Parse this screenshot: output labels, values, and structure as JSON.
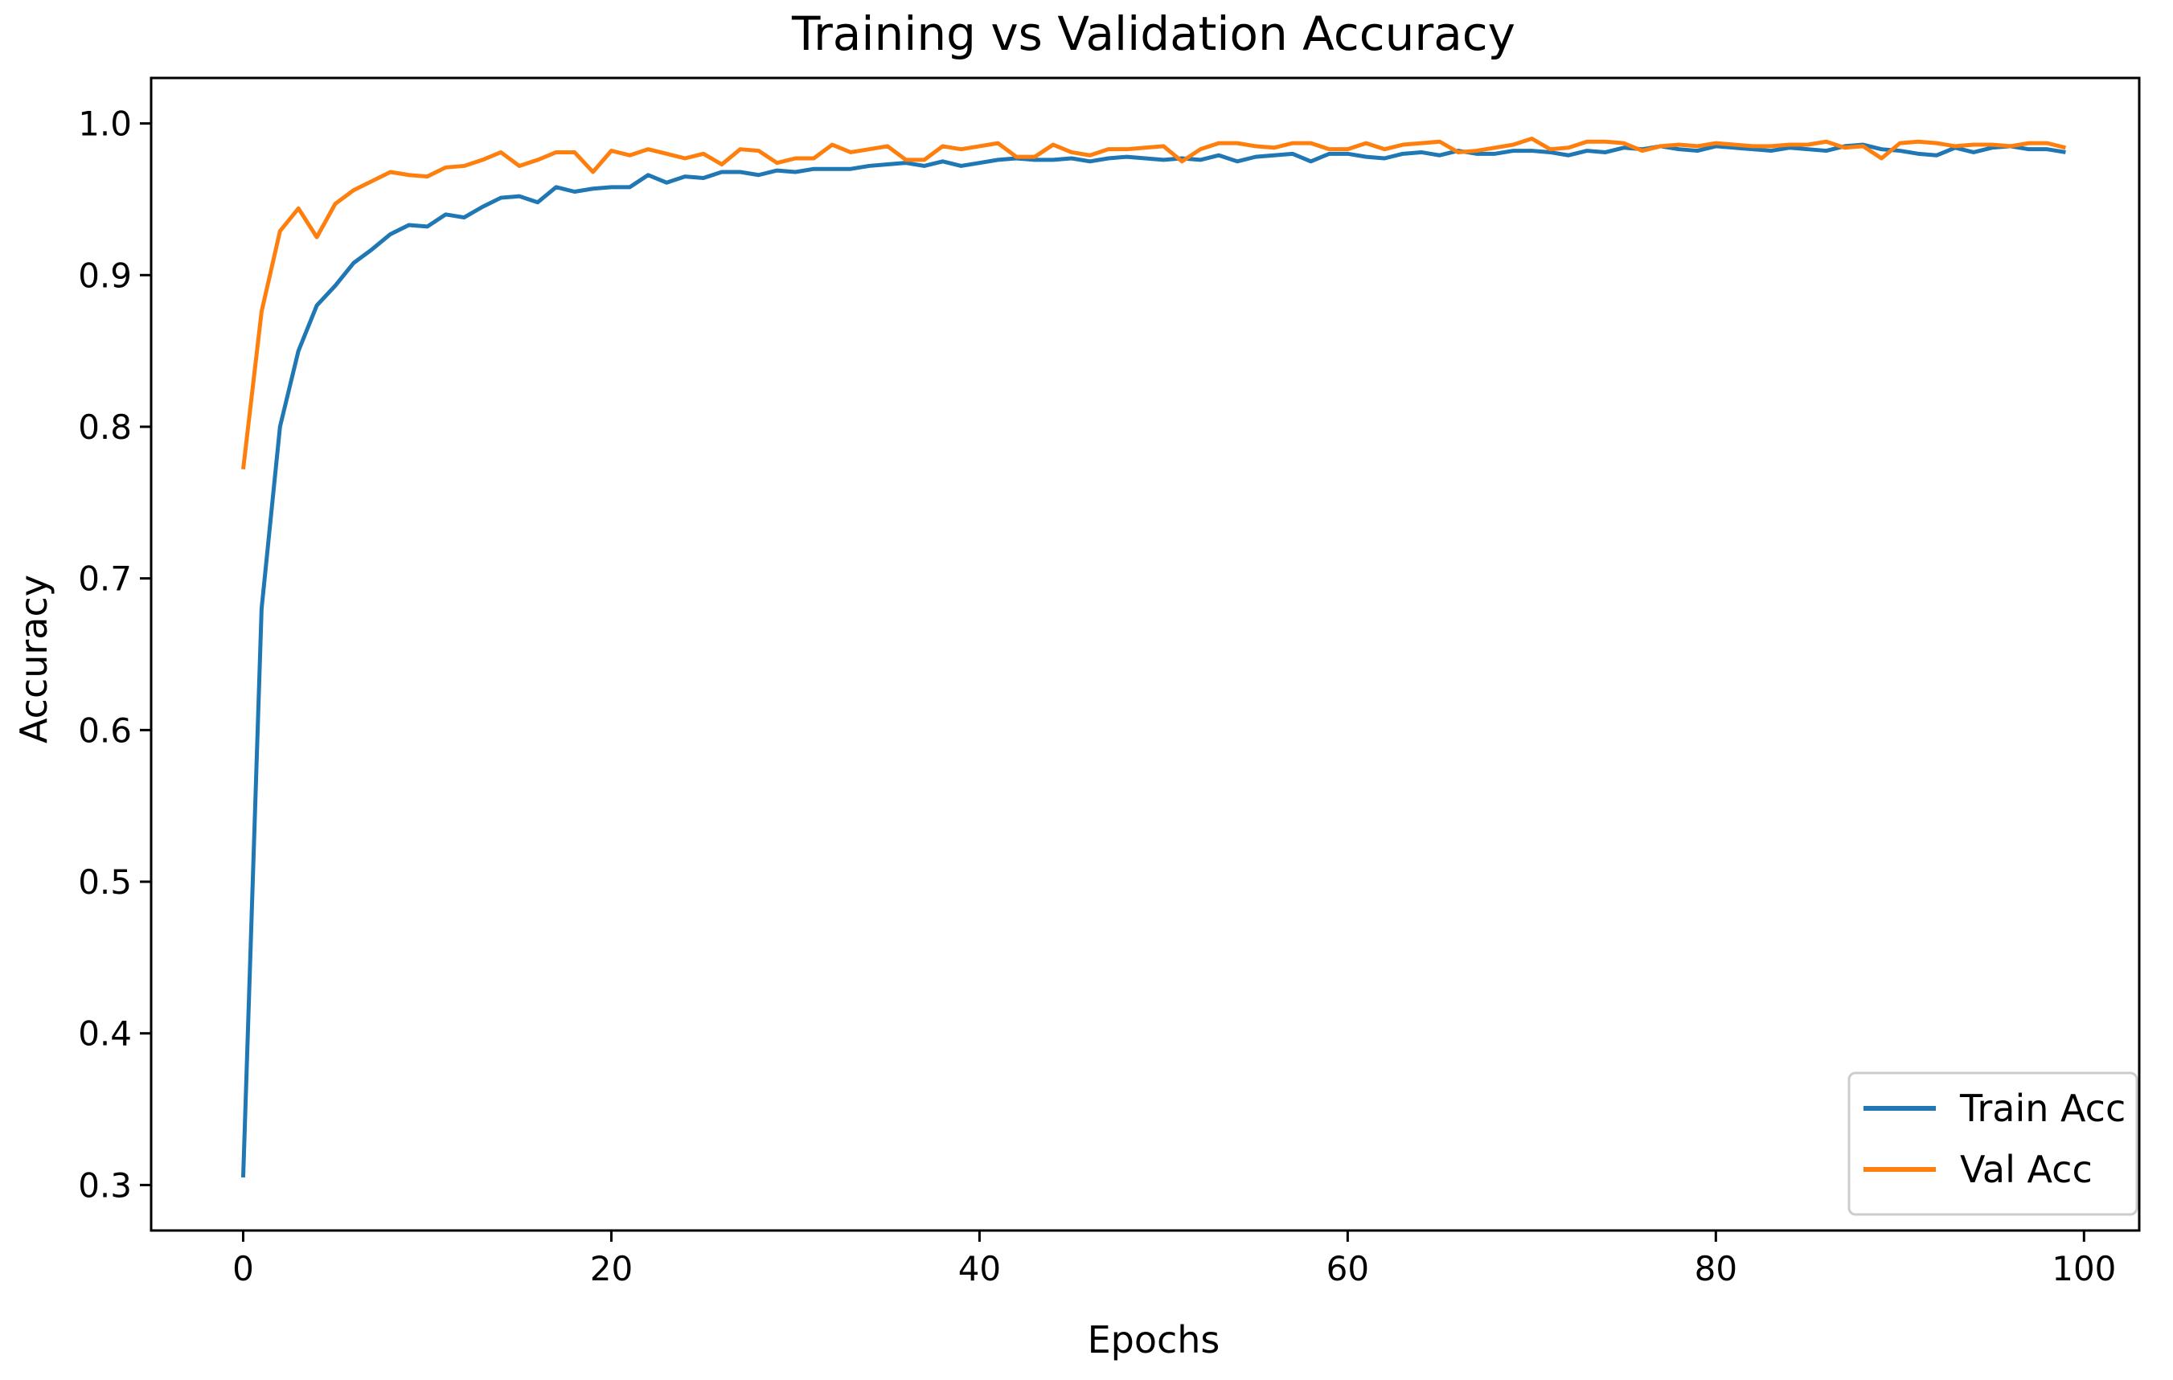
{
  "chart_data": {
    "type": "line",
    "title": "Training vs Validation Accuracy",
    "xlabel": "Epochs",
    "ylabel": "Accuracy",
    "xlim": [
      -5,
      103
    ],
    "ylim": [
      0.27,
      1.03
    ],
    "xticks": [
      0,
      20,
      40,
      60,
      80,
      100
    ],
    "xtick_labels": [
      "0",
      "20",
      "40",
      "60",
      "80",
      "100"
    ],
    "yticks": [
      0.3,
      0.4,
      0.5,
      0.6,
      0.7,
      0.8,
      0.9,
      1.0
    ],
    "ytick_labels": [
      "0.3",
      "0.4",
      "0.5",
      "0.6",
      "0.7",
      "0.8",
      "0.9",
      "1.0"
    ],
    "grid": false,
    "legend_position": "bottom-right",
    "series": [
      {
        "name": "Train Acc",
        "color": "#1f77b4",
        "x": [
          0,
          1,
          2,
          3,
          4,
          5,
          6,
          7,
          8,
          9,
          10,
          11,
          12,
          13,
          14,
          15,
          16,
          17,
          18,
          19,
          20,
          21,
          22,
          23,
          24,
          25,
          26,
          27,
          28,
          29,
          30,
          31,
          32,
          33,
          34,
          35,
          36,
          37,
          38,
          39,
          40,
          41,
          42,
          43,
          44,
          45,
          46,
          47,
          48,
          49,
          50,
          51,
          52,
          53,
          54,
          55,
          56,
          57,
          58,
          59,
          60,
          61,
          62,
          63,
          64,
          65,
          66,
          67,
          68,
          69,
          70,
          71,
          72,
          73,
          74,
          75,
          76,
          77,
          78,
          79,
          80,
          81,
          82,
          83,
          84,
          85,
          86,
          87,
          88,
          89,
          90,
          91,
          92,
          93,
          94,
          95,
          96,
          97,
          98,
          99
        ],
        "values": [
          0.305,
          0.68,
          0.8,
          0.85,
          0.88,
          0.893,
          0.908,
          0.917,
          0.927,
          0.933,
          0.932,
          0.94,
          0.938,
          0.945,
          0.951,
          0.952,
          0.948,
          0.958,
          0.955,
          0.957,
          0.958,
          0.958,
          0.966,
          0.961,
          0.965,
          0.964,
          0.968,
          0.968,
          0.966,
          0.969,
          0.968,
          0.97,
          0.97,
          0.97,
          0.972,
          0.973,
          0.974,
          0.972,
          0.975,
          0.972,
          0.974,
          0.976,
          0.977,
          0.976,
          0.976,
          0.977,
          0.975,
          0.977,
          0.978,
          0.977,
          0.976,
          0.977,
          0.976,
          0.979,
          0.975,
          0.978,
          0.979,
          0.98,
          0.975,
          0.98,
          0.98,
          0.978,
          0.977,
          0.98,
          0.981,
          0.979,
          0.982,
          0.98,
          0.98,
          0.982,
          0.982,
          0.981,
          0.979,
          0.982,
          0.981,
          0.984,
          0.983,
          0.985,
          0.983,
          0.982,
          0.985,
          0.984,
          0.983,
          0.982,
          0.984,
          0.983,
          0.982,
          0.985,
          0.986,
          0.983,
          0.982,
          0.98,
          0.979,
          0.984,
          0.981,
          0.984,
          0.985,
          0.983,
          0.983,
          0.981
        ]
      },
      {
        "name": "Val Acc",
        "color": "#ff7f0e",
        "x": [
          0,
          1,
          2,
          3,
          4,
          5,
          6,
          7,
          8,
          9,
          10,
          11,
          12,
          13,
          14,
          15,
          16,
          17,
          18,
          19,
          20,
          21,
          22,
          23,
          24,
          25,
          26,
          27,
          28,
          29,
          30,
          31,
          32,
          33,
          34,
          35,
          36,
          37,
          38,
          39,
          40,
          41,
          42,
          43,
          44,
          45,
          46,
          47,
          48,
          49,
          50,
          51,
          52,
          53,
          54,
          55,
          56,
          57,
          58,
          59,
          60,
          61,
          62,
          63,
          64,
          65,
          66,
          67,
          68,
          69,
          70,
          71,
          72,
          73,
          74,
          75,
          76,
          77,
          78,
          79,
          80,
          81,
          82,
          83,
          84,
          85,
          86,
          87,
          88,
          89,
          90,
          91,
          92,
          93,
          94,
          95,
          96,
          97,
          98,
          99
        ],
        "values": [
          0.772,
          0.876,
          0.929,
          0.944,
          0.925,
          0.947,
          0.956,
          0.962,
          0.968,
          0.966,
          0.965,
          0.971,
          0.972,
          0.976,
          0.981,
          0.972,
          0.976,
          0.981,
          0.981,
          0.968,
          0.982,
          0.979,
          0.983,
          0.98,
          0.977,
          0.98,
          0.973,
          0.983,
          0.982,
          0.974,
          0.977,
          0.977,
          0.986,
          0.981,
          0.983,
          0.985,
          0.976,
          0.976,
          0.985,
          0.983,
          0.985,
          0.987,
          0.978,
          0.978,
          0.986,
          0.981,
          0.979,
          0.983,
          0.983,
          0.984,
          0.985,
          0.975,
          0.983,
          0.987,
          0.987,
          0.985,
          0.984,
          0.987,
          0.987,
          0.983,
          0.983,
          0.987,
          0.983,
          0.986,
          0.987,
          0.988,
          0.981,
          0.982,
          0.984,
          0.986,
          0.99,
          0.983,
          0.984,
          0.988,
          0.988,
          0.987,
          0.982,
          0.985,
          0.986,
          0.985,
          0.987,
          0.986,
          0.985,
          0.985,
          0.986,
          0.986,
          0.988,
          0.984,
          0.985,
          0.977,
          0.987,
          0.988,
          0.987,
          0.985,
          0.986,
          0.986,
          0.985,
          0.987,
          0.987,
          0.984
        ]
      }
    ]
  }
}
